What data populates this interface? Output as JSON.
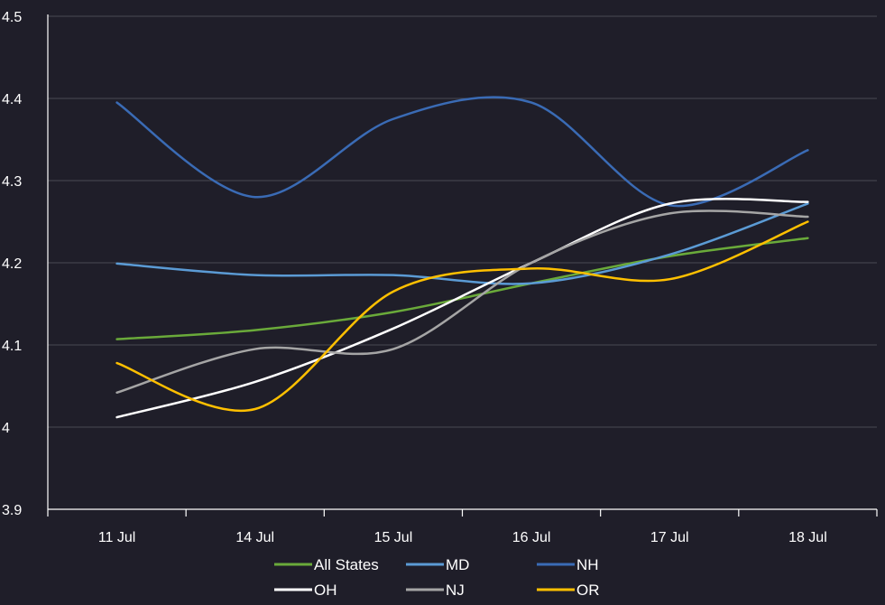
{
  "chart_data": {
    "type": "line",
    "title": "",
    "xlabel": "",
    "ylabel": "",
    "categories": [
      "11 Jul",
      "14 Jul",
      "15 Jul",
      "16 Jul",
      "17 Jul",
      "18 Jul"
    ],
    "y_ticks": [
      "3.9",
      "4",
      "4.1",
      "4.2",
      "4.3",
      "4.4",
      "4.5"
    ],
    "ylim": [
      3.9,
      4.5
    ],
    "grid": "horizontal",
    "legend_position": "bottom",
    "series": [
      {
        "name": "All States",
        "color": "#6aaa3a",
        "values": [
          4.107,
          4.118,
          4.14,
          4.175,
          4.208,
          4.23
        ]
      },
      {
        "name": "MD",
        "color": "#5b9bd5",
        "values": [
          4.199,
          4.185,
          4.185,
          4.175,
          4.21,
          4.272
        ]
      },
      {
        "name": "NH",
        "color": "#3a6bb5",
        "values": [
          4.395,
          4.28,
          4.375,
          4.395,
          4.27,
          4.337
        ]
      },
      {
        "name": "OH",
        "color": "#ffffff",
        "values": [
          4.012,
          4.055,
          4.12,
          4.2,
          4.272,
          4.274
        ]
      },
      {
        "name": "NJ",
        "color": "#a5a5a5",
        "values": [
          4.042,
          4.095,
          4.095,
          4.2,
          4.26,
          4.256
        ]
      },
      {
        "name": "OR",
        "color": "#ffc000",
        "values": [
          4.078,
          4.022,
          4.165,
          4.193,
          4.18,
          4.25
        ]
      }
    ]
  }
}
